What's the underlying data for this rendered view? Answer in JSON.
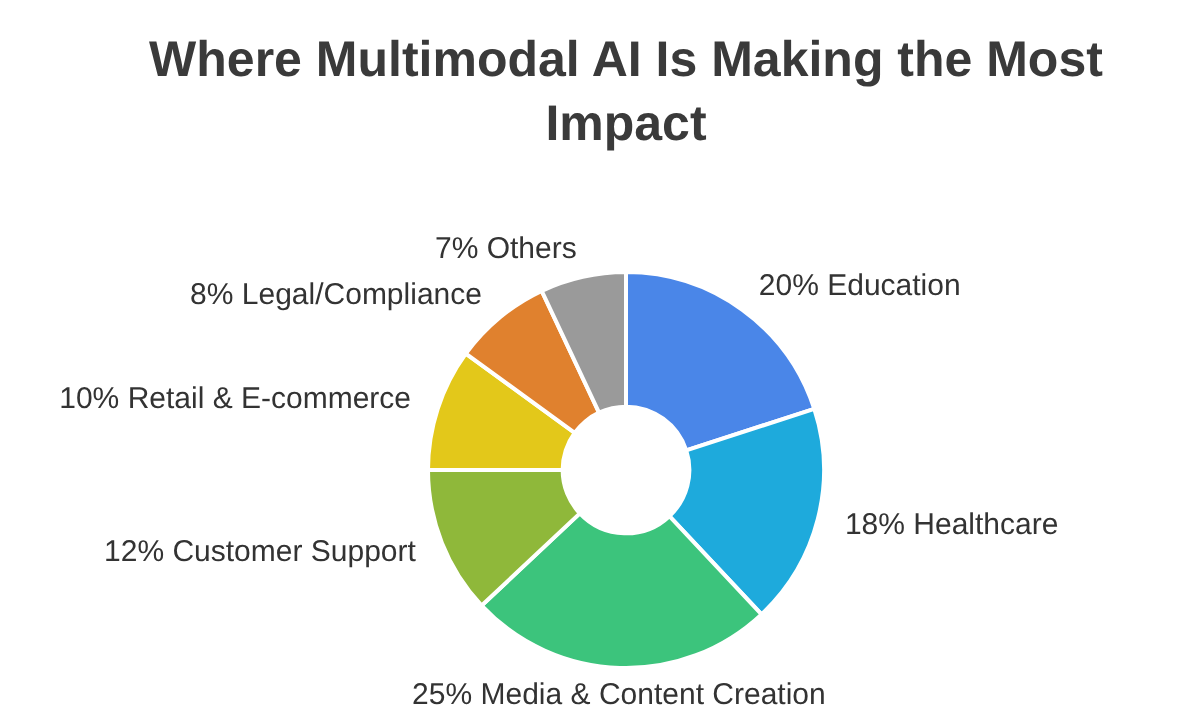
{
  "chart_data": {
    "type": "donut",
    "title": "Where Multimodal AI Is Making the Most Impact",
    "categories": [
      "20% Education",
      "18% Healthcare",
      "25% Media & Content Creation",
      "12% Customer Support",
      "10% Retail & E-commerce",
      "8% Legal/Compliance",
      "7% Others"
    ],
    "values": [
      20,
      18,
      25,
      12,
      10,
      8,
      7
    ],
    "colors": [
      "#4a86e8",
      "#1eaadc",
      "#3cc47c",
      "#8fb83a",
      "#e3c81a",
      "#e0812e",
      "#9a9a9a"
    ],
    "legend": false
  }
}
